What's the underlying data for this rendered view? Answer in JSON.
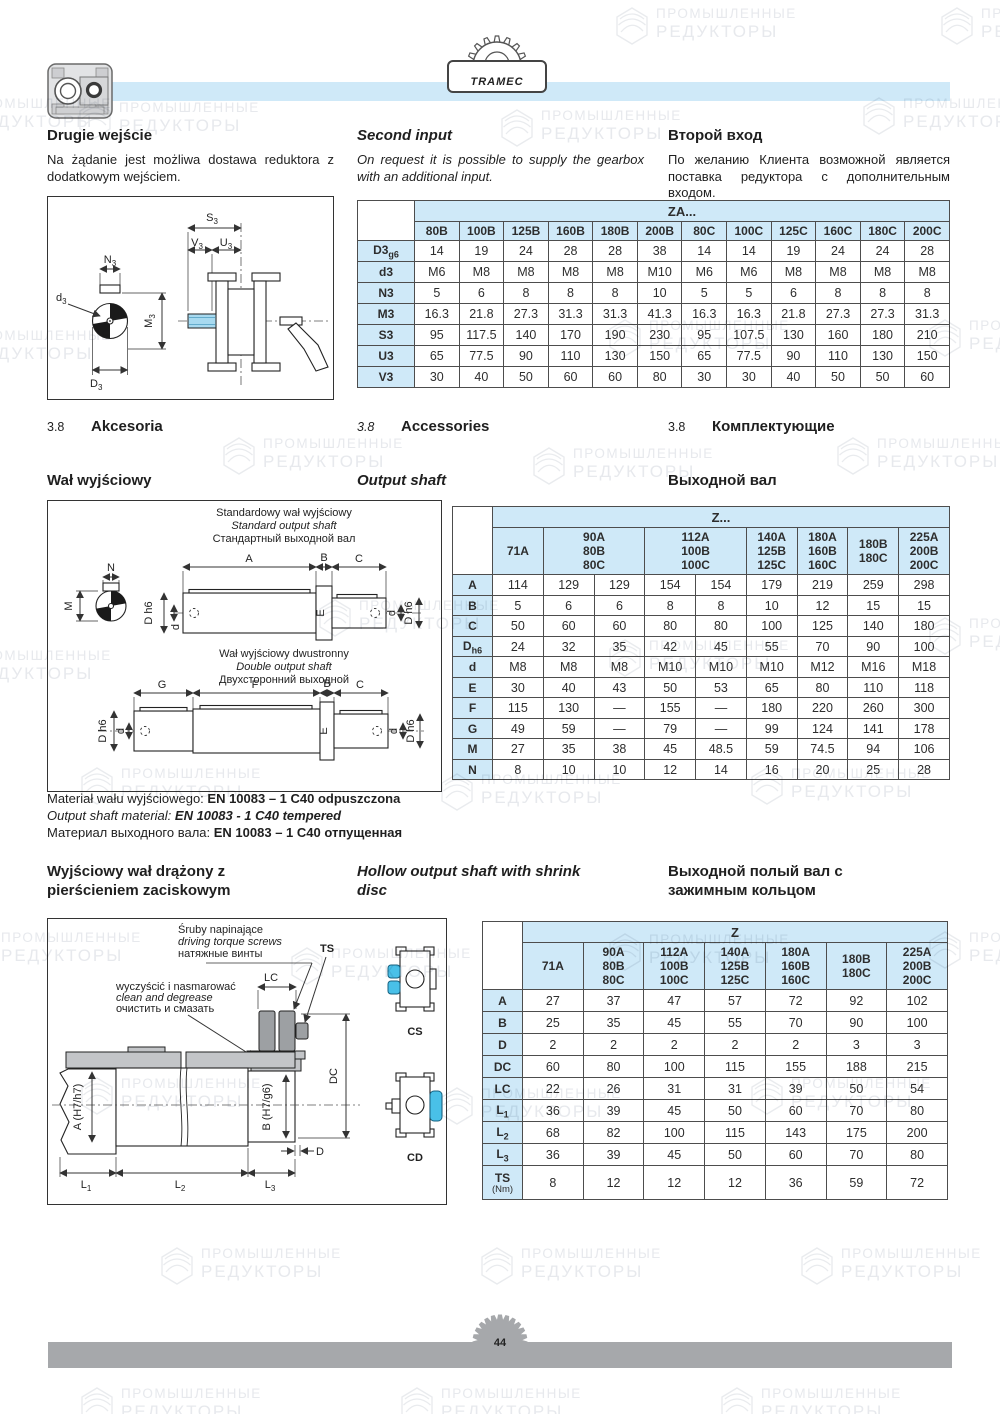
{
  "watermark": {
    "line1": "ПРОМЫШЛЕННЫЕ",
    "line2": "РЕДУКТОРЫ"
  },
  "logo": {
    "text": "TRAMEC"
  },
  "intro": {
    "pl": {
      "h": "Drugie wejście",
      "p": "Na żądanie jest możliwa dostawa reduktora z dodatkowym wejściem."
    },
    "en": {
      "h": "Second input",
      "p": "On request it is possible to supply the gearbox with an additional input."
    },
    "ru": {
      "h": "Второй вход",
      "p": "По желанию Клиента возможной является поставка редуктора с дополнительным входом."
    }
  },
  "d1": {
    "S3": [
      "S",
      "3"
    ],
    "V3": [
      "V",
      "3"
    ],
    "U3": [
      "U",
      "3"
    ],
    "N3": [
      "N",
      "3"
    ],
    "d3": [
      "d",
      "3"
    ],
    "M3": [
      "M",
      "3"
    ],
    "D3": [
      "D",
      "3"
    ]
  },
  "sec": {
    "num": "3.8",
    "pl": "Akcesoria",
    "en": "Accessories",
    "ru": "Комплектующие"
  },
  "out": {
    "pl": "Wał wyjściowy",
    "en": "Output shaft",
    "ru": "Выходной вал",
    "mat": {
      "pl": [
        "Materiał wału wyjściowego:",
        "EN 10083 – 1 C40 odpuszczona"
      ],
      "en": [
        "Output shaft material:",
        "EN 10083 - 1 C40 tempered"
      ],
      "ru": [
        "Материал выходного вала:",
        "EN 10083 – 1 C40 отпущенная"
      ]
    }
  },
  "d2": {
    "std": [
      "Standardowy wał wyjściowy",
      "Standard output shaft",
      "Стандартный выходной вал"
    ],
    "dbl": [
      "Wał wyjściowy dwustronny",
      "Double output shaft",
      "Двухсторонний выходной"
    ],
    "N": "N",
    "M": "M",
    "A": "A",
    "B": "B",
    "C": "C",
    "Dh6": "D h6",
    "d": "d",
    "E": "E",
    "F": "F",
    "G": "G"
  },
  "hollow": {
    "pl": "Wyjściowy wał drążony z pierścieniem zaciskowym",
    "en": "Hollow output shaft with shrink disc",
    "ru": "Выходной полый вал с зажимным кольцом"
  },
  "d3": {
    "screws": [
      "Śruby napinające",
      "driving torque screws",
      "натяжные винты"
    ],
    "clean": [
      "wyczyścić i nasmarować",
      "clean and degrease",
      "очистить и смазать"
    ],
    "TS": "TS",
    "LC": "LC",
    "DC": "DC",
    "A": "A (H7/h7)",
    "B": "B (H7/g6)",
    "D": "D",
    "L1": [
      "L",
      "1"
    ],
    "L2": [
      "L",
      "2"
    ],
    "L3": [
      "L",
      "3"
    ],
    "CS": "CS",
    "CD": "CD"
  },
  "t_za": {
    "title": "ZA...",
    "cols": [
      {
        "label": "80B",
        "span": 1
      },
      {
        "label": "100B",
        "span": 1
      },
      {
        "label": "125B",
        "span": 1
      },
      {
        "label": "160B",
        "span": 1
      },
      {
        "label": "180B",
        "span": 1
      },
      {
        "label": "200B",
        "span": 1
      },
      {
        "label": "80C",
        "span": 1
      },
      {
        "label": "100C",
        "span": 1
      },
      {
        "label": "125C",
        "span": 1
      },
      {
        "label": "160C",
        "span": 1
      },
      {
        "label": "180C",
        "span": 1
      },
      {
        "label": "200C",
        "span": 1
      }
    ],
    "rows": [
      {
        "t": "D3",
        "sub": "g6",
        "v": [
          "14",
          "19",
          "24",
          "28",
          "28",
          "38",
          "14",
          "14",
          "19",
          "24",
          "24",
          "28"
        ]
      },
      {
        "t": "d3",
        "v": [
          "M6",
          "M8",
          "M8",
          "M8",
          "M8",
          "M10",
          "M6",
          "M6",
          "M8",
          "M8",
          "M8",
          "M8"
        ]
      },
      {
        "t": "N3",
        "v": [
          "5",
          "6",
          "8",
          "8",
          "8",
          "10",
          "5",
          "5",
          "6",
          "8",
          "8",
          "8"
        ]
      },
      {
        "t": "M3",
        "v": [
          "16.3",
          "21.8",
          "27.3",
          "31.3",
          "31.3",
          "41.3",
          "16.3",
          "16.3",
          "21.8",
          "27.3",
          "27.3",
          "31.3"
        ]
      },
      {
        "t": "S3",
        "v": [
          "95",
          "117.5",
          "140",
          "170",
          "190",
          "230",
          "95",
          "107.5",
          "130",
          "160",
          "180",
          "210"
        ]
      },
      {
        "t": "U3",
        "v": [
          "65",
          "77.5",
          "90",
          "110",
          "130",
          "150",
          "65",
          "77.5",
          "90",
          "110",
          "130",
          "150"
        ]
      },
      {
        "t": "V3",
        "v": [
          "30",
          "40",
          "50",
          "60",
          "60",
          "80",
          "30",
          "30",
          "40",
          "50",
          "50",
          "60"
        ]
      }
    ]
  },
  "t_out": {
    "title": "Z...",
    "cols": [
      {
        "label": "71A",
        "span": 1
      },
      {
        "label": "90A\n80B\n80C",
        "span": 2
      },
      {
        "label": "112A\n100B\n100C",
        "span": 2
      },
      {
        "label": "140A\n125B\n125C",
        "span": 1
      },
      {
        "label": "180A\n160B\n160C",
        "span": 1
      },
      {
        "label": "180B\n180C",
        "span": 1
      },
      {
        "label": "225A\n200B\n200C",
        "span": 1
      }
    ],
    "rows": [
      {
        "t": "A",
        "v": [
          "114",
          "129",
          "129",
          "154",
          "154",
          "179",
          "219",
          "259",
          "298"
        ]
      },
      {
        "t": "B",
        "v": [
          "5",
          "6",
          "6",
          "8",
          "8",
          "10",
          "12",
          "15",
          "15"
        ]
      },
      {
        "t": "C",
        "v": [
          "50",
          "60",
          "60",
          "80",
          "80",
          "100",
          "125",
          "140",
          "180"
        ]
      },
      {
        "t": "D",
        "sub": "h6",
        "v": [
          "24",
          "32",
          "35",
          "42",
          "45",
          "55",
          "70",
          "90",
          "100"
        ]
      },
      {
        "t": "d",
        "v": [
          "M8",
          "M8",
          "M8",
          "M10",
          "M10",
          "M10",
          "M12",
          "M16",
          "M18"
        ]
      },
      {
        "t": "E",
        "v": [
          "30",
          "40",
          "43",
          "50",
          "53",
          "65",
          "80",
          "110",
          "118"
        ]
      },
      {
        "t": "F",
        "v": [
          "115",
          "130",
          "—",
          "155",
          "—",
          "180",
          "220",
          "260",
          "300"
        ]
      },
      {
        "t": "G",
        "v": [
          "49",
          "59",
          "—",
          "79",
          "—",
          "99",
          "124",
          "141",
          "178"
        ]
      },
      {
        "t": "M",
        "v": [
          "27",
          "35",
          "38",
          "45",
          "48.5",
          "59",
          "74.5",
          "94",
          "106"
        ]
      },
      {
        "t": "N",
        "v": [
          "8",
          "10",
          "10",
          "12",
          "14",
          "16",
          "20",
          "25",
          "28"
        ]
      }
    ]
  },
  "t_hollow": {
    "title": "Z",
    "cols": [
      {
        "label": "71A",
        "span": 1
      },
      {
        "label": "90A\n80B\n80C",
        "span": 1
      },
      {
        "label": "112A\n100B\n100C",
        "span": 1
      },
      {
        "label": "140A\n125B\n125C",
        "span": 1
      },
      {
        "label": "180A\n160B\n160C",
        "span": 1
      },
      {
        "label": "180B\n180C",
        "span": 1
      },
      {
        "label": "225A\n200B\n200C",
        "span": 1
      }
    ],
    "rows": [
      {
        "t": "A",
        "v": [
          "27",
          "37",
          "47",
          "57",
          "72",
          "92",
          "102"
        ]
      },
      {
        "t": "B",
        "v": [
          "25",
          "35",
          "45",
          "55",
          "70",
          "90",
          "100"
        ]
      },
      {
        "t": "D",
        "v": [
          "2",
          "2",
          "2",
          "2",
          "2",
          "3",
          "3"
        ]
      },
      {
        "t": "DC",
        "v": [
          "60",
          "80",
          "100",
          "115",
          "155",
          "188",
          "215"
        ]
      },
      {
        "t": "LC",
        "v": [
          "22",
          "26",
          "31",
          "31",
          "39",
          "50",
          "54"
        ]
      },
      {
        "t": "L",
        "sub": "1",
        "v": [
          "36",
          "39",
          "45",
          "50",
          "60",
          "70",
          "80"
        ]
      },
      {
        "t": "L",
        "sub": "2",
        "v": [
          "68",
          "82",
          "100",
          "115",
          "143",
          "175",
          "200"
        ]
      },
      {
        "t": "L",
        "sub": "3",
        "v": [
          "36",
          "39",
          "45",
          "50",
          "60",
          "70",
          "80"
        ]
      },
      {
        "t": "TS",
        "note": "(Nm)",
        "v": [
          "8",
          "12",
          "12",
          "12",
          "36",
          "59",
          "72"
        ]
      }
    ]
  },
  "footer": {
    "page": "44"
  }
}
